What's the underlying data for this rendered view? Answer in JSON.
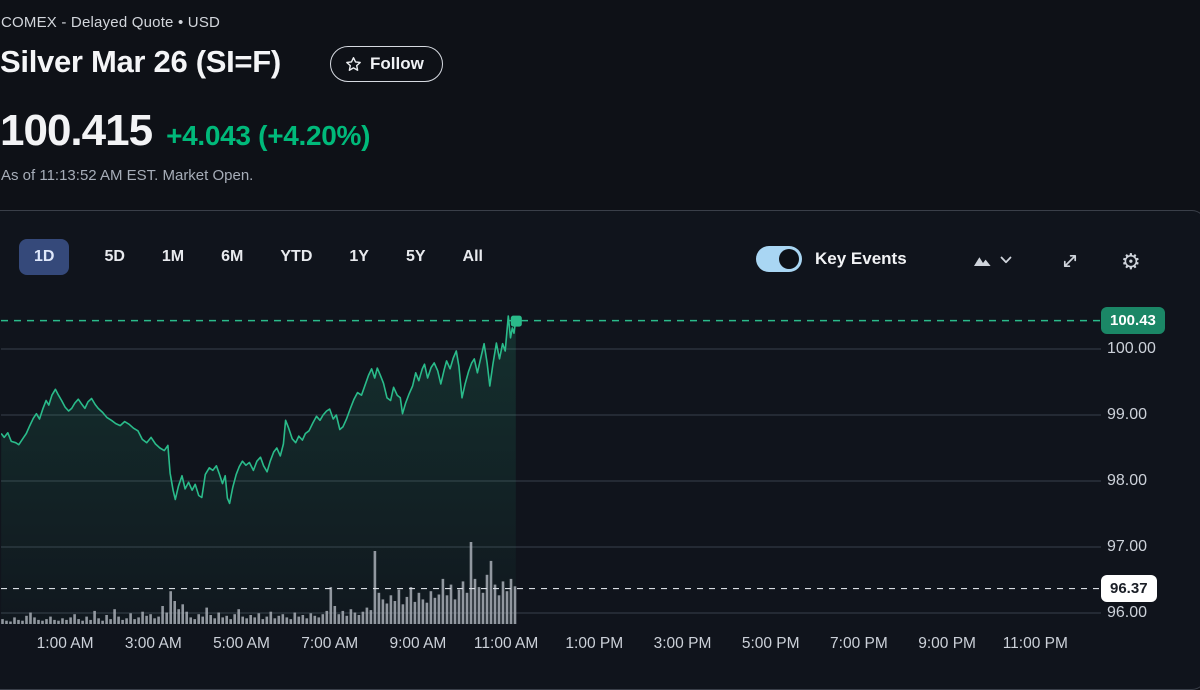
{
  "header": {
    "exchange_line": "COMEX - Delayed Quote • USD",
    "title": "Silver Mar 26 (SI=F)",
    "follow_label": "Follow",
    "price": "100.415",
    "change": "+4.043",
    "change_percent": "(+4.20%)",
    "as_of": "As of 11:13:52 AM EST. Market Open."
  },
  "toolbar": {
    "ranges": [
      "1D",
      "5D",
      "1M",
      "6M",
      "YTD",
      "1Y",
      "5Y",
      "All"
    ],
    "selected_range": "1D",
    "key_events_label": "Key Events",
    "key_events_on": true
  },
  "colors": {
    "up_green_text": "#00b97a",
    "line_green": "#2abb8a",
    "badge_green": "#1b8766",
    "toggle_track": "#a9d6f3",
    "grid": "#39404b",
    "prev_close_dash": "#d9dde3",
    "volume_bar": "#a8aeb6"
  },
  "chart_data": {
    "type": "line",
    "title": "Silver Mar 26 (SI=F) intraday price, 1D range",
    "x_unit": "hour_of_day",
    "xlim": [
      -0.45,
      24.5
    ],
    "ylim": [
      95.85,
      100.75
    ],
    "grid": "horizontal",
    "legend": "none",
    "current_price": 100.43,
    "previous_close": 96.37,
    "current_price_badge": "100.43",
    "previous_close_badge": "96.37",
    "y_axis": {
      "ticks": [
        {
          "value": 100,
          "label": "100.00"
        },
        {
          "value": 99,
          "label": "99.00"
        },
        {
          "value": 98,
          "label": "98.00"
        },
        {
          "value": 97,
          "label": "97.00"
        },
        {
          "value": 96,
          "label": "96.00"
        }
      ]
    },
    "x_axis": {
      "ticks": [
        {
          "hour": 1,
          "label": "1:00 AM"
        },
        {
          "hour": 3,
          "label": "3:00 AM"
        },
        {
          "hour": 5,
          "label": "5:00 AM"
        },
        {
          "hour": 7,
          "label": "7:00 AM"
        },
        {
          "hour": 9,
          "label": "9:00 AM"
        },
        {
          "hour": 11,
          "label": "11:00 AM"
        },
        {
          "hour": 13,
          "label": "1:00 PM"
        },
        {
          "hour": 15,
          "label": "3:00 PM"
        },
        {
          "hour": 17,
          "label": "5:00 PM"
        },
        {
          "hour": 19,
          "label": "7:00 PM"
        },
        {
          "hour": 21,
          "label": "9:00 PM"
        },
        {
          "hour": 23,
          "label": "11:00 PM"
        }
      ]
    },
    "series": {
      "name": "price",
      "points": [
        [
          -0.45,
          98.72
        ],
        [
          -0.38,
          98.66
        ],
        [
          -0.3,
          98.73
        ],
        [
          -0.22,
          98.6
        ],
        [
          -0.12,
          98.58
        ],
        [
          -0.05,
          98.55
        ],
        [
          0.05,
          98.65
        ],
        [
          0.12,
          98.72
        ],
        [
          0.2,
          98.84
        ],
        [
          0.28,
          98.95
        ],
        [
          0.35,
          99.02
        ],
        [
          0.42,
          98.94
        ],
        [
          0.5,
          99.1
        ],
        [
          0.57,
          99.22
        ],
        [
          0.63,
          99.15
        ],
        [
          0.7,
          99.3
        ],
        [
          0.78,
          99.39
        ],
        [
          0.85,
          99.3
        ],
        [
          0.92,
          99.22
        ],
        [
          1.0,
          99.12
        ],
        [
          1.08,
          99.06
        ],
        [
          1.15,
          99.1
        ],
        [
          1.22,
          99.18
        ],
        [
          1.3,
          99.24
        ],
        [
          1.38,
          99.16
        ],
        [
          1.45,
          99.1
        ],
        [
          1.52,
          99.2
        ],
        [
          1.6,
          99.25
        ],
        [
          1.68,
          99.16
        ],
        [
          1.75,
          99.1
        ],
        [
          1.85,
          99.04
        ],
        [
          1.95,
          98.96
        ],
        [
          2.05,
          98.92
        ],
        [
          2.15,
          98.87
        ],
        [
          2.25,
          98.84
        ],
        [
          2.35,
          98.9
        ],
        [
          2.45,
          98.86
        ],
        [
          2.55,
          98.8
        ],
        [
          2.65,
          98.76
        ],
        [
          2.75,
          98.63
        ],
        [
          2.85,
          98.58
        ],
        [
          2.95,
          98.66
        ],
        [
          3.05,
          98.56
        ],
        [
          3.15,
          98.5
        ],
        [
          3.25,
          98.46
        ],
        [
          3.33,
          98.54
        ],
        [
          3.38,
          98.12
        ],
        [
          3.45,
          97.86
        ],
        [
          3.5,
          97.72
        ],
        [
          3.57,
          97.92
        ],
        [
          3.65,
          98.08
        ],
        [
          3.72,
          97.88
        ],
        [
          3.8,
          97.98
        ],
        [
          3.88,
          97.86
        ],
        [
          3.95,
          97.95
        ],
        [
          4.03,
          97.78
        ],
        [
          4.1,
          97.75
        ],
        [
          4.18,
          98.1
        ],
        [
          4.27,
          98.2
        ],
        [
          4.35,
          98.16
        ],
        [
          4.43,
          98.23
        ],
        [
          4.5,
          98.1
        ],
        [
          4.57,
          97.96
        ],
        [
          4.63,
          98.08
        ],
        [
          4.68,
          97.74
        ],
        [
          4.73,
          97.66
        ],
        [
          4.8,
          97.9
        ],
        [
          4.88,
          98.1
        ],
        [
          4.95,
          98.22
        ],
        [
          5.02,
          98.3
        ],
        [
          5.1,
          98.24
        ],
        [
          5.18,
          98.28
        ],
        [
          5.27,
          98.16
        ],
        [
          5.35,
          98.3
        ],
        [
          5.43,
          98.36
        ],
        [
          5.5,
          98.23
        ],
        [
          5.58,
          98.14
        ],
        [
          5.65,
          98.3
        ],
        [
          5.73,
          98.44
        ],
        [
          5.8,
          98.5
        ],
        [
          5.88,
          98.38
        ],
        [
          5.95,
          98.56
        ],
        [
          6.0,
          98.92
        ],
        [
          6.07,
          98.8
        ],
        [
          6.15,
          98.64
        ],
        [
          6.23,
          98.58
        ],
        [
          6.3,
          98.68
        ],
        [
          6.38,
          98.62
        ],
        [
          6.45,
          98.72
        ],
        [
          6.53,
          98.76
        ],
        [
          6.62,
          98.88
        ],
        [
          6.7,
          98.98
        ],
        [
          6.78,
          98.92
        ],
        [
          6.85,
          99.0
        ],
        [
          6.93,
          99.06
        ],
        [
          7.0,
          99.09
        ],
        [
          7.08,
          98.94
        ],
        [
          7.15,
          99.0
        ],
        [
          7.23,
          98.78
        ],
        [
          7.3,
          98.82
        ],
        [
          7.38,
          98.94
        ],
        [
          7.47,
          99.1
        ],
        [
          7.55,
          99.24
        ],
        [
          7.63,
          99.34
        ],
        [
          7.72,
          99.3
        ],
        [
          7.8,
          99.45
        ],
        [
          7.88,
          99.6
        ],
        [
          7.95,
          99.7
        ],
        [
          8.02,
          99.56
        ],
        [
          8.08,
          99.71
        ],
        [
          8.15,
          99.6
        ],
        [
          8.22,
          99.48
        ],
        [
          8.3,
          99.26
        ],
        [
          8.38,
          99.22
        ],
        [
          8.45,
          99.42
        ],
        [
          8.53,
          99.3
        ],
        [
          8.6,
          99.26
        ],
        [
          8.65,
          99.02
        ],
        [
          8.72,
          99.18
        ],
        [
          8.8,
          99.32
        ],
        [
          8.88,
          99.44
        ],
        [
          8.95,
          99.64
        ],
        [
          9.02,
          99.52
        ],
        [
          9.1,
          99.7
        ],
        [
          9.15,
          99.77
        ],
        [
          9.22,
          99.56
        ],
        [
          9.3,
          99.72
        ],
        [
          9.37,
          99.79
        ],
        [
          9.45,
          99.67
        ],
        [
          9.52,
          99.47
        ],
        [
          9.6,
          99.7
        ],
        [
          9.65,
          99.82
        ],
        [
          9.73,
          99.7
        ],
        [
          9.8,
          99.86
        ],
        [
          9.87,
          99.97
        ],
        [
          9.93,
          99.74
        ],
        [
          10.0,
          99.26
        ],
        [
          10.07,
          99.47
        ],
        [
          10.15,
          99.66
        ],
        [
          10.22,
          99.79
        ],
        [
          10.28,
          99.85
        ],
        [
          10.35,
          99.64
        ],
        [
          10.43,
          99.88
        ],
        [
          10.5,
          100.08
        ],
        [
          10.57,
          99.79
        ],
        [
          10.63,
          99.44
        ],
        [
          10.7,
          99.77
        ],
        [
          10.78,
          100.09
        ],
        [
          10.85,
          99.85
        ],
        [
          10.92,
          100.08
        ],
        [
          10.98,
          99.97
        ],
        [
          11.05,
          100.5
        ],
        [
          11.1,
          100.17
        ],
        [
          11.14,
          100.32
        ],
        [
          11.18,
          100.24
        ],
        [
          11.2,
          100.35
        ],
        [
          11.22,
          100.43
        ]
      ]
    },
    "volume": {
      "name": "volume",
      "t_start": -0.42,
      "t_step": 0.0908,
      "values_pct_of_max": [
        6,
        4,
        3,
        8,
        5,
        4,
        10,
        14,
        8,
        5,
        4,
        6,
        9,
        5,
        4,
        7,
        5,
        8,
        12,
        6,
        4,
        9,
        5,
        16,
        7,
        4,
        11,
        6,
        18,
        9,
        5,
        7,
        13,
        6,
        8,
        15,
        10,
        12,
        7,
        9,
        22,
        14,
        40,
        28,
        18,
        24,
        15,
        8,
        6,
        12,
        9,
        20,
        11,
        7,
        14,
        8,
        10,
        6,
        12,
        18,
        9,
        7,
        11,
        8,
        13,
        6,
        9,
        15,
        7,
        10,
        12,
        8,
        6,
        14,
        9,
        11,
        7,
        13,
        10,
        8,
        12,
        16,
        45,
        22,
        12,
        16,
        10,
        18,
        14,
        11,
        15,
        20,
        17,
        89,
        38,
        30,
        25,
        35,
        28,
        42,
        24,
        33,
        45,
        27,
        38,
        30,
        26,
        40,
        32,
        36,
        55,
        35,
        48,
        30,
        42,
        52,
        38,
        100,
        55,
        45,
        38,
        60,
        77,
        48,
        35,
        52,
        40,
        55,
        46
      ]
    }
  }
}
